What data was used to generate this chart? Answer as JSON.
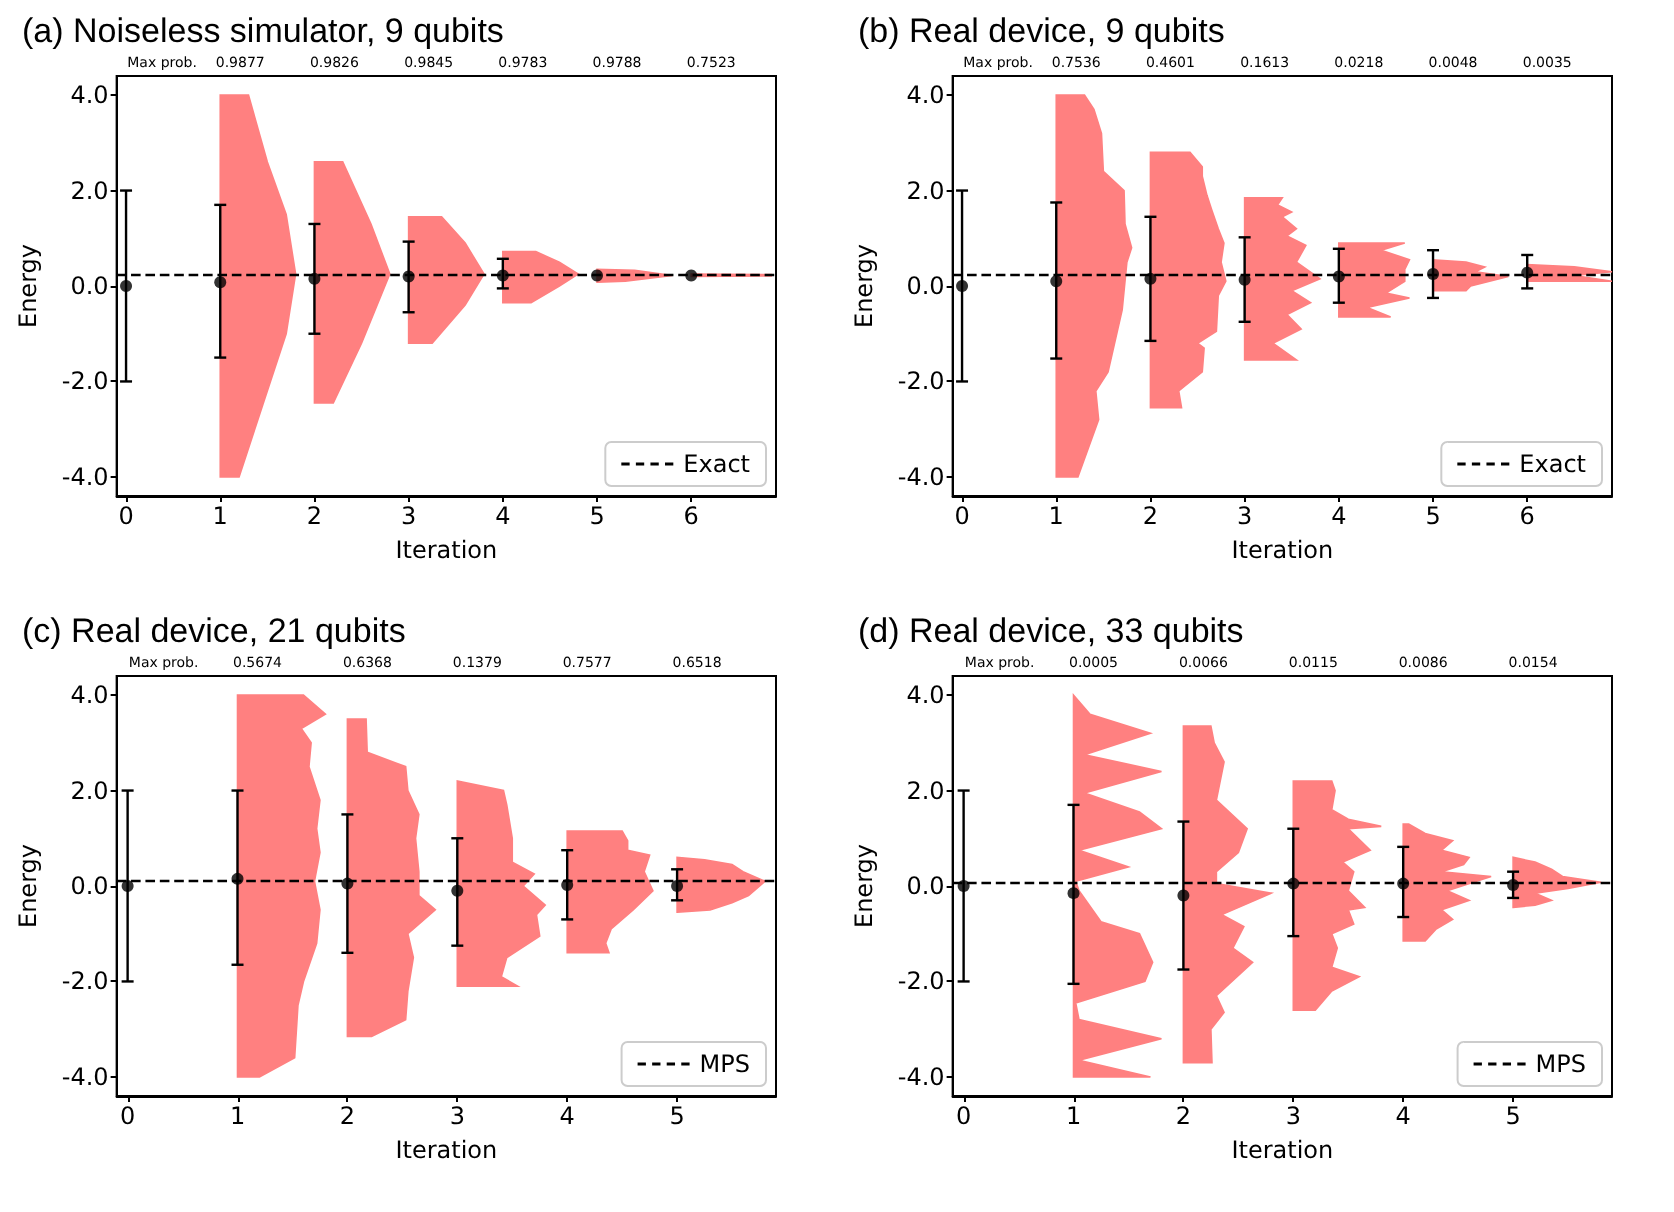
{
  "chart_data": [
    {
      "type": "scatter",
      "title": "(a) Noiseless simulator, 9 qubits",
      "xlabel": "Iteration",
      "ylabel": "Energy",
      "xlim": [
        -0.1,
        6.9
      ],
      "ylim": [
        -4.4,
        4.4
      ],
      "xticks": [
        0,
        1,
        2,
        3,
        4,
        5,
        6
      ],
      "yticks": [
        {
          "value": -4,
          "label": "-4.0"
        },
        {
          "value": -2,
          "label": "-2.0"
        },
        {
          "value": 0,
          "label": "0.0"
        },
        {
          "value": 2,
          "label": "2.0"
        },
        {
          "value": 4,
          "label": "4.0"
        }
      ],
      "legend": "bottom right",
      "annotations": [
        "Max prob.",
        "0.9877",
        "0.9826",
        "0.9845",
        "0.9783",
        "0.9788",
        "0.7523"
      ],
      "ref_lines": [
        {
          "axis": "y",
          "value": 0.25,
          "label": "Exact",
          "color": "#000000",
          "line_style": "dashed"
        }
      ],
      "series": [
        {
          "type": "area",
          "color": "#ff8080",
          "x": [
            1,
            1.2,
            1.45,
            1.7,
            1.8,
            1.7,
            1.5,
            1.3,
            1
          ],
          "values": [
            -4,
            -4,
            -2.5,
            -1,
            0.25,
            1.5,
            2.6,
            4,
            4
          ]
        },
        {
          "type": "area",
          "color": "#ff8080",
          "x": [
            2,
            2.2,
            2.5,
            2.8,
            2.6,
            2.3,
            2
          ],
          "values": [
            -2.45,
            -2.45,
            -1.2,
            0.25,
            1.3,
            2.6,
            2.6
          ]
        },
        {
          "type": "area",
          "color": "#ff8080",
          "x": [
            3,
            3.25,
            3.6,
            3.8,
            3.6,
            3.35,
            3
          ],
          "values": [
            -1.2,
            -1.2,
            -0.4,
            0.25,
            0.9,
            1.45,
            1.45
          ]
        },
        {
          "type": "area",
          "color": "#ff8080",
          "x": [
            4,
            4.3,
            4.6,
            4.8,
            4.6,
            4.35,
            4
          ],
          "values": [
            -0.35,
            -0.35,
            0,
            0.25,
            0.5,
            0.72,
            0.72
          ]
        },
        {
          "type": "area",
          "color": "#ff8080",
          "x": [
            5,
            5.3,
            5.8,
            5.4,
            5
          ],
          "values": [
            0.08,
            0.1,
            0.22,
            0.33,
            0.35
          ]
        },
        {
          "type": "area",
          "color": "#ff8080",
          "x": [
            6,
            6.85,
            6.85,
            6
          ],
          "values": [
            0.2,
            0.21,
            0.24,
            0.25
          ]
        },
        {
          "marker": "circle",
          "color": "#000000",
          "x": [
            0,
            1,
            2,
            3,
            4,
            5,
            6
          ],
          "values": [
            0,
            0.08,
            0.15,
            0.2,
            0.22,
            0.22,
            0.22
          ],
          "errors": [
            [
              -2,
              2
            ],
            [
              -1.5,
              1.7
            ],
            [
              -1,
              1.3
            ],
            [
              -0.55,
              0.93
            ],
            [
              -0.05,
              0.57
            ],
            null,
            null
          ]
        }
      ]
    },
    {
      "type": "scatter",
      "title": "(b) Real device, 9 qubits",
      "xlabel": "Iteration",
      "ylabel": "Energy",
      "xlim": [
        -0.1,
        6.9
      ],
      "ylim": [
        -4.4,
        4.4
      ],
      "xticks": [
        0,
        1,
        2,
        3,
        4,
        5,
        6
      ],
      "yticks": [
        {
          "value": -4,
          "label": "-4.0"
        },
        {
          "value": -2,
          "label": "-2.0"
        },
        {
          "value": 0,
          "label": "0.0"
        },
        {
          "value": 2,
          "label": "2.0"
        },
        {
          "value": 4,
          "label": "4.0"
        }
      ],
      "legend": "bottom right",
      "annotations": [
        "Max prob.",
        "0.7536",
        "0.4601",
        "0.1613",
        "0.0218",
        "0.0048",
        "0.0035"
      ],
      "ref_lines": [
        {
          "axis": "y",
          "value": 0.25,
          "label": "Exact",
          "color": "#000000",
          "line_style": "dashed"
        }
      ],
      "series": [
        {
          "type": "area",
          "color": "#ff8080",
          "x": [
            1,
            1.23,
            1.45,
            1.42,
            1.55,
            1.7,
            1.75,
            1.8,
            1.73,
            1.72,
            1.5,
            1.48,
            1.4,
            1.3,
            1
          ],
          "values": [
            -4,
            -4,
            -2.8,
            -2.2,
            -1.8,
            -0.5,
            0.5,
            0.8,
            1.3,
            2,
            2.4,
            3.2,
            3.7,
            4,
            4
          ]
        },
        {
          "type": "area",
          "color": "#ff8080",
          "x": [
            2,
            2.33,
            2.3,
            2.55,
            2.57,
            2.5,
            2.7,
            2.72,
            2.8,
            2.75,
            2.78,
            2.72,
            2.65,
            2.6,
            2.55,
            2.55,
            2.42,
            2
          ],
          "values": [
            -2.55,
            -2.55,
            -2.2,
            -1.8,
            -1.3,
            -1.2,
            -0.95,
            -0.2,
            0.1,
            0.5,
            0.9,
            1.2,
            1.6,
            1.9,
            2.3,
            2.5,
            2.8,
            2.8
          ]
        },
        {
          "type": "area",
          "color": "#ff8080",
          "x": [
            3,
            3.55,
            3.3,
            3.6,
            3.45,
            3.7,
            3.5,
            3.8,
            3.55,
            3.65,
            3.45,
            3.55,
            3.4,
            3.5,
            3.35,
            3.4,
            3
          ],
          "values": [
            -1.55,
            -1.55,
            -1.2,
            -0.9,
            -0.6,
            -0.35,
            -0.1,
            0.15,
            0.5,
            0.85,
            1.05,
            1.2,
            1.45,
            1.55,
            1.7,
            1.85,
            1.85
          ]
        },
        {
          "type": "area",
          "color": "#ff8080",
          "x": [
            4,
            4.55,
            4.3,
            4.75,
            4.5,
            4.7,
            4.7,
            4.75,
            4.45,
            4.7,
            4
          ],
          "values": [
            -0.65,
            -0.65,
            -0.45,
            -0.25,
            -0.15,
            0.1,
            0.35,
            0.55,
            0.75,
            0.9,
            0.9
          ]
        },
        {
          "type": "area",
          "color": "#ff8080",
          "x": [
            5,
            5.35,
            5.4,
            5.8,
            5.45,
            5.55,
            5.35,
            5
          ],
          "values": [
            -0.1,
            -0.1,
            0,
            0.2,
            0.3,
            0.4,
            0.5,
            0.55
          ]
        },
        {
          "type": "area",
          "color": "#ff8080",
          "x": [
            6,
            6.9,
            6.5,
            6.9,
            6.5,
            6
          ],
          "values": [
            0.1,
            0.1,
            0.22,
            0.3,
            0.4,
            0.45
          ]
        },
        {
          "marker": "circle",
          "color": "#000000",
          "x": [
            0,
            1,
            2,
            3,
            4,
            5,
            6
          ],
          "values": [
            0,
            0.1,
            0.15,
            0.13,
            0.2,
            0.25,
            0.28
          ],
          "errors": [
            [
              -2,
              2
            ],
            [
              -1.52,
              1.75
            ],
            [
              -1.15,
              1.45
            ],
            [
              -0.75,
              1.02
            ],
            [
              -0.35,
              0.78
            ],
            [
              -0.25,
              0.75
            ],
            [
              -0.05,
              0.65
            ]
          ]
        }
      ]
    },
    {
      "type": "scatter",
      "title": "(c) Real device, 21 qubits",
      "xlabel": "Iteration",
      "ylabel": "Energy",
      "xlim": [
        -0.1,
        5.9
      ],
      "ylim": [
        -4.4,
        4.4
      ],
      "xticks": [
        0,
        1,
        2,
        3,
        4,
        5
      ],
      "yticks": [
        {
          "value": -4,
          "label": "-4.0"
        },
        {
          "value": -2,
          "label": "-2.0"
        },
        {
          "value": 0,
          "label": "0.0"
        },
        {
          "value": 2,
          "label": "2.0"
        },
        {
          "value": 4,
          "label": "4.0"
        }
      ],
      "legend": "bottom right",
      "annotations": [
        "Max prob.",
        "0.5674",
        "0.6368",
        "0.1379",
        "0.7577",
        "0.6518"
      ],
      "ref_lines": [
        {
          "axis": "y",
          "value": 0.1,
          "label": "MPS",
          "color": "#000000",
          "line_style": "dashed"
        }
      ],
      "series": [
        {
          "type": "area",
          "color": "#ff8080",
          "x": [
            1,
            1.2,
            1.52,
            1.55,
            1.6,
            1.72,
            1.75,
            1.7,
            1.75,
            1.72,
            1.75,
            1.65,
            1.67,
            1.58,
            1.8,
            1.6,
            1
          ],
          "values": [
            -4,
            -4,
            -3.6,
            -2.5,
            -2,
            -1.2,
            -0.5,
            0.1,
            0.7,
            1.2,
            1.8,
            2.5,
            3,
            3.3,
            3.6,
            4,
            4
          ]
        },
        {
          "type": "area",
          "color": "#ff8080",
          "x": [
            2,
            2.22,
            2.53,
            2.55,
            2.6,
            2.55,
            2.65,
            2.8,
            2.65,
            2.65,
            2.62,
            2.65,
            2.55,
            2.53,
            2.18,
            2.17,
            2
          ],
          "values": [
            -3.15,
            -3.15,
            -2.8,
            -2.2,
            -1.5,
            -1,
            -0.8,
            -0.5,
            -0.2,
            0.3,
            1,
            1.5,
            2,
            2.5,
            2.8,
            3.5,
            3.5
          ]
        },
        {
          "type": "area",
          "color": "#ff8080",
          "x": [
            3,
            3.55,
            3.4,
            3.45,
            3.75,
            3.72,
            3.8,
            3.6,
            3.7,
            3.5,
            3.5,
            3.45,
            3.42,
            3
          ],
          "values": [
            -2.1,
            -2.1,
            -1.9,
            -1.5,
            -1.05,
            -0.6,
            -0.4,
            0,
            0.25,
            0.5,
            1,
            1.7,
            2,
            2.2
          ]
        },
        {
          "type": "area",
          "color": "#ff8080",
          "x": [
            4,
            4.38,
            4.35,
            4.4,
            4.6,
            4.78,
            4.7,
            4.75,
            4.55,
            4.55,
            4.5,
            4
          ],
          "values": [
            -1.4,
            -1.4,
            -1.2,
            -0.9,
            -0.5,
            -0.1,
            0.3,
            0.65,
            0.75,
            0.95,
            1.15,
            1.15
          ]
        },
        {
          "type": "area",
          "color": "#ff8080",
          "x": [
            5,
            5.3,
            5.5,
            5.65,
            5.8,
            5.6,
            5.5,
            5.25,
            5
          ],
          "values": [
            -0.55,
            -0.5,
            -0.35,
            -0.2,
            0.1,
            0.3,
            0.45,
            0.55,
            0.6
          ]
        },
        {
          "marker": "circle",
          "color": "#000000",
          "x": [
            0,
            1,
            2,
            3,
            4,
            5
          ],
          "values": [
            0,
            0.15,
            0.05,
            -0.1,
            0.02,
            0
          ],
          "errors": [
            [
              -2,
              2
            ],
            [
              -1.65,
              2
            ],
            [
              -1.4,
              1.5
            ],
            [
              -1.25,
              1
            ],
            [
              -0.7,
              0.75
            ],
            [
              -0.3,
              0.35
            ]
          ]
        }
      ]
    },
    {
      "type": "scatter",
      "title": "(d) Real device, 33 qubits",
      "xlabel": "Iteration",
      "ylabel": "Energy",
      "xlim": [
        -0.1,
        5.9
      ],
      "ylim": [
        -4.4,
        4.4
      ],
      "xticks": [
        0,
        1,
        2,
        3,
        4,
        5
      ],
      "yticks": [
        {
          "value": -4,
          "label": "-4.0"
        },
        {
          "value": -2,
          "label": "-2.0"
        },
        {
          "value": 0,
          "label": "0.0"
        },
        {
          "value": 2,
          "label": "2.0"
        },
        {
          "value": 4,
          "label": "4.0"
        }
      ],
      "legend": "bottom right",
      "annotations": [
        "Max prob.",
        "0.0005",
        "0.0066",
        "0.0115",
        "0.0086",
        "0.0154"
      ],
      "ref_lines": [
        {
          "axis": "y",
          "value": 0.08,
          "label": "MPS",
          "color": "#000000",
          "line_style": "dashed"
        }
      ],
      "series": [
        {
          "type": "area",
          "color": "#ff8080",
          "x": [
            1,
            1.7,
            1.05,
            1.8,
            1.05,
            1.02,
            1.65,
            1.72,
            1.6,
            1.25,
            1.05,
            1.02,
            1.5,
            1.05,
            1.8,
            1.6,
            1.1,
            1.8,
            1.1,
            1.7,
            1.15,
            1
          ],
          "values": [
            -4,
            -4,
            -3.65,
            -3.2,
            -2.8,
            -2.45,
            -2,
            -1.6,
            -1,
            -0.75,
            -0.1,
            0.1,
            0.4,
            0.75,
            1.2,
            1.55,
            1.95,
            2.4,
            2.75,
            3.2,
            3.6,
            4
          ]
        },
        {
          "type": "area",
          "color": "#ff8080",
          "x": [
            2,
            2.26,
            2.25,
            2.37,
            2.3,
            2.63,
            2.45,
            2.55,
            2.35,
            2.8,
            2.3,
            2.3,
            2.5,
            2.58,
            2.3,
            2.37,
            2.28,
            2.25,
            2
          ],
          "values": [
            -3.7,
            -3.7,
            -3,
            -2.65,
            -2.3,
            -1.6,
            -1.3,
            -0.85,
            -0.6,
            -0.15,
            0.05,
            0.3,
            0.7,
            1.2,
            1.8,
            2.6,
            3,
            3.35,
            3.35
          ]
        },
        {
          "type": "area",
          "color": "#ff8080",
          "x": [
            3,
            3.2,
            3.35,
            3.6,
            3.35,
            3.4,
            3.35,
            3.55,
            3.5,
            3.65,
            3.5,
            3.55,
            3.45,
            3.7,
            3.5,
            3.8,
            3.5,
            3.35,
            3.38,
            3.35,
            3
          ],
          "values": [
            -2.6,
            -2.6,
            -2.2,
            -1.9,
            -1.7,
            -1.3,
            -1,
            -0.8,
            -0.5,
            -0.45,
            -0.1,
            0.3,
            0.5,
            0.75,
            1.2,
            1.25,
            1.4,
            1.6,
            2,
            2.2,
            2.2
          ]
        },
        {
          "type": "area",
          "color": "#ff8080",
          "x": [
            4,
            4.2,
            4.3,
            4.45,
            4.35,
            4.6,
            4.4,
            4.8,
            4.35,
            4.55,
            4.6,
            4.35,
            4.45,
            4.2,
            4.05,
            4
          ],
          "values": [
            -1.15,
            -1.15,
            -0.9,
            -0.7,
            -0.5,
            -0.3,
            -0.1,
            0.2,
            0.3,
            0.45,
            0.6,
            0.75,
            0.95,
            1.1,
            1.3,
            1.3
          ]
        },
        {
          "type": "area",
          "color": "#ff8080",
          "x": [
            5,
            5.2,
            5.35,
            5.2,
            5.5,
            5.8,
            5.45,
            5.35,
            5.2,
            5
          ],
          "values": [
            -0.45,
            -0.4,
            -0.3,
            -0.15,
            -0.05,
            0.08,
            0.2,
            0.35,
            0.5,
            0.6
          ]
        },
        {
          "marker": "circle",
          "color": "#000000",
          "x": [
            0,
            1,
            2,
            3,
            4,
            5
          ],
          "values": [
            0,
            -0.15,
            -0.2,
            0.05,
            0.05,
            0.02
          ],
          "errors": [
            [
              -2,
              2
            ],
            [
              -2.05,
              1.7
            ],
            [
              -1.75,
              1.35
            ],
            [
              -1.05,
              1.2
            ],
            [
              -0.65,
              0.82
            ],
            [
              -0.25,
              0.3
            ]
          ]
        }
      ]
    }
  ]
}
